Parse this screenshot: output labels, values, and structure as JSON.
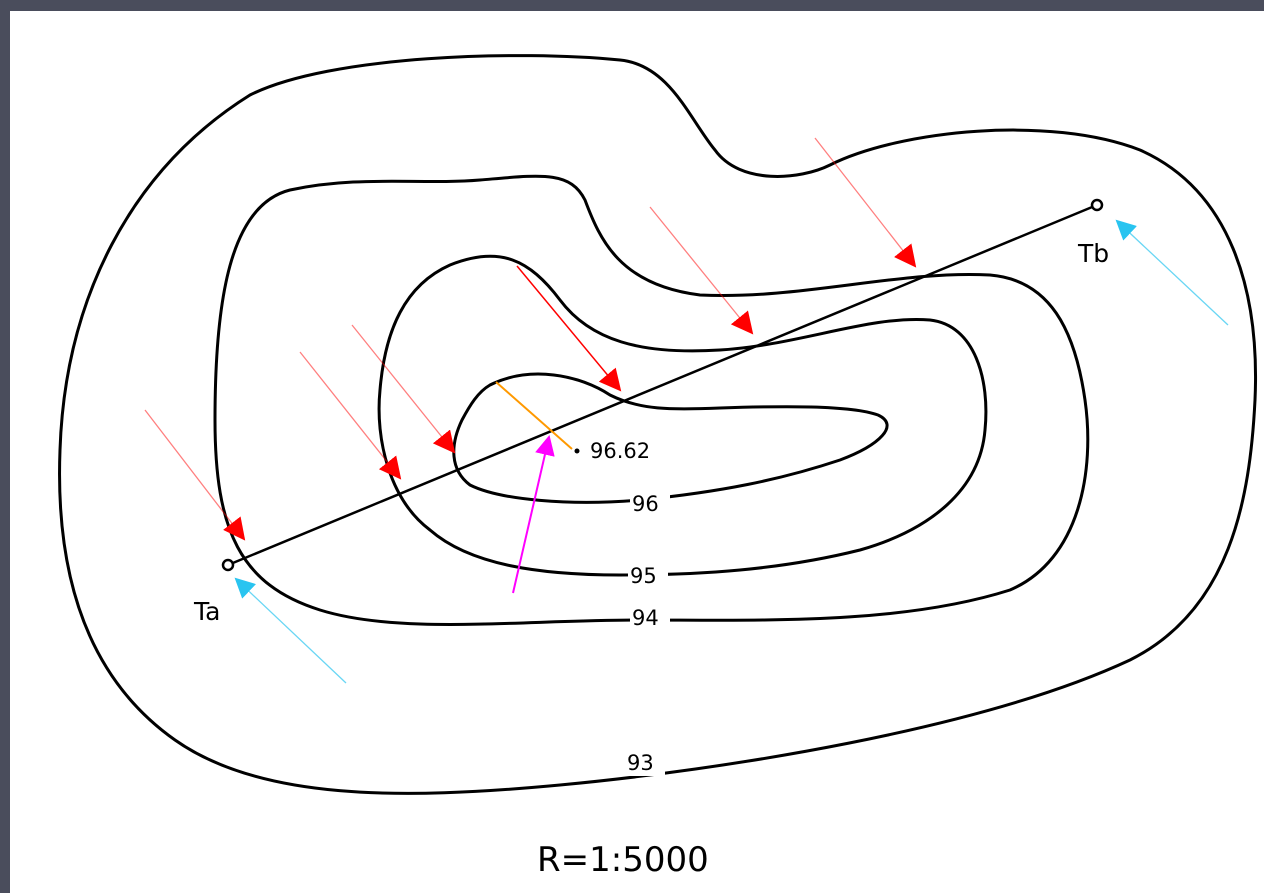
{
  "contour_labels": {
    "c93": "93",
    "c94": "94",
    "c95": "95",
    "c96": "96"
  },
  "spot_height": "96.62",
  "endpoints": {
    "start": "Ta",
    "end": "Tb"
  },
  "scale": "R=1:5000",
  "colors": {
    "contour": "#000000",
    "profile_line": "#000000",
    "red_arrow": "#ff0000",
    "cyan_arrow": "#29c4f0",
    "magenta_arrow": "#ff00ff",
    "orange_segment": "#ff9900"
  }
}
